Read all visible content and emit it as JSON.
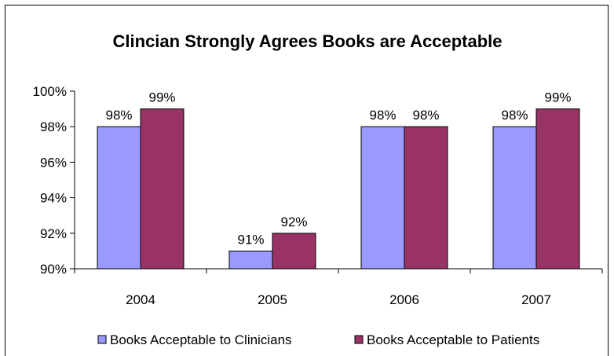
{
  "chart_data": {
    "type": "bar",
    "title": "Clincian Strongly Agrees Books are Acceptable",
    "xlabel": "",
    "ylabel": "",
    "categories": [
      "2004",
      "2005",
      "2006",
      "2007"
    ],
    "series": [
      {
        "name": "Books Acceptable to Clinicians",
        "values": [
          98,
          91,
          98,
          98
        ],
        "labels": [
          "98%",
          "91%",
          "98%",
          "98%"
        ],
        "color": "#9999FF"
      },
      {
        "name": "Books Acceptable to Patients",
        "values": [
          99,
          92,
          98,
          99
        ],
        "labels": [
          "99%",
          "92%",
          "98%",
          "99%"
        ],
        "color": "#993366"
      }
    ],
    "ylim": [
      90,
      100
    ],
    "yticks": [
      90,
      92,
      94,
      96,
      98,
      100
    ],
    "ytick_labels": [
      "90%",
      "92%",
      "94%",
      "96%",
      "98%",
      "100%"
    ],
    "grid": false,
    "legend": "bottom"
  }
}
